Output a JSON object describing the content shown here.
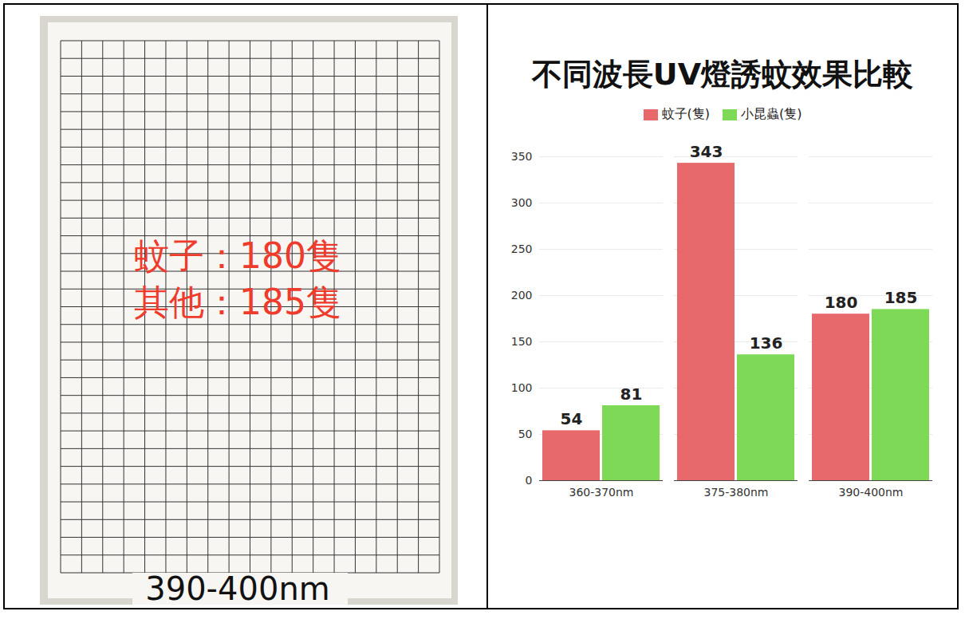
{
  "chart_data": {
    "type": "bar",
    "title": "不同波長UV燈誘蚊效果比較",
    "categories": [
      "360-370nm",
      "375-380nm",
      "390-400nm"
    ],
    "series": [
      {
        "name": "蚊子(隻)",
        "color": "#e8696b",
        "values": [
          54,
          343,
          180
        ]
      },
      {
        "name": "小昆蟲(隻)",
        "color": "#7ed957",
        "values": [
          81,
          136,
          185
        ]
      }
    ],
    "ylim": [
      0,
      350
    ],
    "yticks": [
      0,
      50,
      100,
      150,
      200,
      250,
      300,
      350
    ],
    "grid": true,
    "data_labels": true,
    "legend": "top"
  },
  "photo": {
    "labels": [
      "蚊子：180隻",
      "其他：185隻"
    ],
    "caption": "390-400nm"
  }
}
